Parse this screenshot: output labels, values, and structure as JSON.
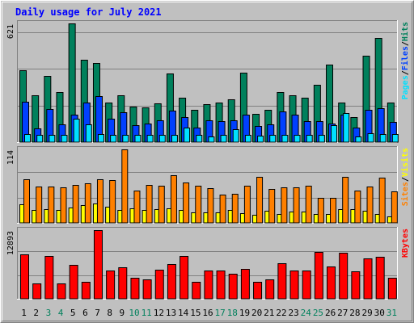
{
  "title": "Daily usage for July 2021",
  "days": [
    "1",
    "2",
    "3",
    "4",
    "5",
    "6",
    "7",
    "8",
    "9",
    "10",
    "11",
    "12",
    "13",
    "14",
    "15",
    "16",
    "17",
    "18",
    "19",
    "20",
    "21",
    "22",
    "23",
    "24",
    "25",
    "26",
    "27",
    "28",
    "29",
    "30",
    "31"
  ],
  "weekend_days": [
    "3",
    "4",
    "10",
    "11",
    "17",
    "18",
    "24",
    "25",
    "31"
  ],
  "colors": {
    "hits": "#00805c",
    "files": "#0040ff",
    "pages": "#00e0ff",
    "visits": "#ffff00",
    "sites": "#ff8000",
    "kbytes": "#ff0000",
    "weekday_label": "#000000",
    "weekend_label": "#00805c",
    "title": "#0000ff"
  },
  "chart_data": [
    {
      "type": "bar",
      "name": "hits-files-pages",
      "ymax_label": "621",
      "ylim": [
        0,
        621
      ],
      "right_label_parts": [
        "Pages",
        "Files",
        "Hits"
      ],
      "series": [
        {
          "name": "Hits",
          "values": [
            375,
            246,
            345,
            261,
            621,
            433,
            413,
            206,
            244,
            184,
            182,
            201,
            360,
            232,
            171,
            200,
            209,
            226,
            363,
            147,
            167,
            262,
            244,
            231,
            299,
            406,
            207,
            132,
            454,
            544,
            208
          ]
        },
        {
          "name": "Files",
          "values": [
            210,
            72,
            173,
            94,
            145,
            206,
            241,
            121,
            157,
            87,
            98,
            115,
            165,
            133,
            78,
            113,
            109,
            115,
            145,
            85,
            94,
            160,
            142,
            108,
            111,
            96,
            143,
            76,
            169,
            179,
            104
          ]
        },
        {
          "name": "Pages",
          "values": [
            42,
            37,
            40,
            38,
            123,
            92,
            43,
            40,
            38,
            37,
            37,
            37,
            40,
            74,
            40,
            29,
            36,
            69,
            37,
            32,
            37,
            37,
            37,
            36,
            37,
            88,
            152,
            30,
            46,
            41,
            44
          ]
        }
      ]
    },
    {
      "type": "bar",
      "name": "visits-sites",
      "ymax_label": "114",
      "ylim": [
        0,
        114
      ],
      "right_label_parts": [
        "Sites",
        "Visits"
      ],
      "series": [
        {
          "name": "Visits",
          "values": [
            29,
            20,
            21,
            20,
            24,
            27,
            30,
            25,
            20,
            23,
            20,
            21,
            22,
            20,
            16,
            16,
            16,
            20,
            15,
            13,
            19,
            14,
            17,
            18,
            14,
            14,
            21,
            21,
            19,
            14,
            10
          ]
        },
        {
          "name": "Sites",
          "values": [
            68,
            56,
            56,
            55,
            59,
            62,
            68,
            67,
            114,
            50,
            59,
            58,
            74,
            63,
            58,
            54,
            44,
            45,
            58,
            72,
            53,
            55,
            55,
            57,
            39,
            39,
            72,
            50,
            56,
            70,
            49
          ]
        }
      ]
    },
    {
      "type": "bar",
      "name": "kbytes",
      "ymax_label": "12893",
      "ylim": [
        0,
        12893
      ],
      "right_label_parts": [
        "KBytes"
      ],
      "series": [
        {
          "name": "KBytes",
          "values": [
            8300,
            2900,
            8000,
            2900,
            6300,
            3200,
            12893,
            5300,
            5900,
            3900,
            3600,
            5500,
            6500,
            8000,
            3200,
            5300,
            5300,
            4700,
            5600,
            3200,
            3600,
            6600,
            5300,
            5300,
            8800,
            6000,
            8700,
            5100,
            7600,
            7900,
            3900
          ]
        }
      ]
    }
  ]
}
